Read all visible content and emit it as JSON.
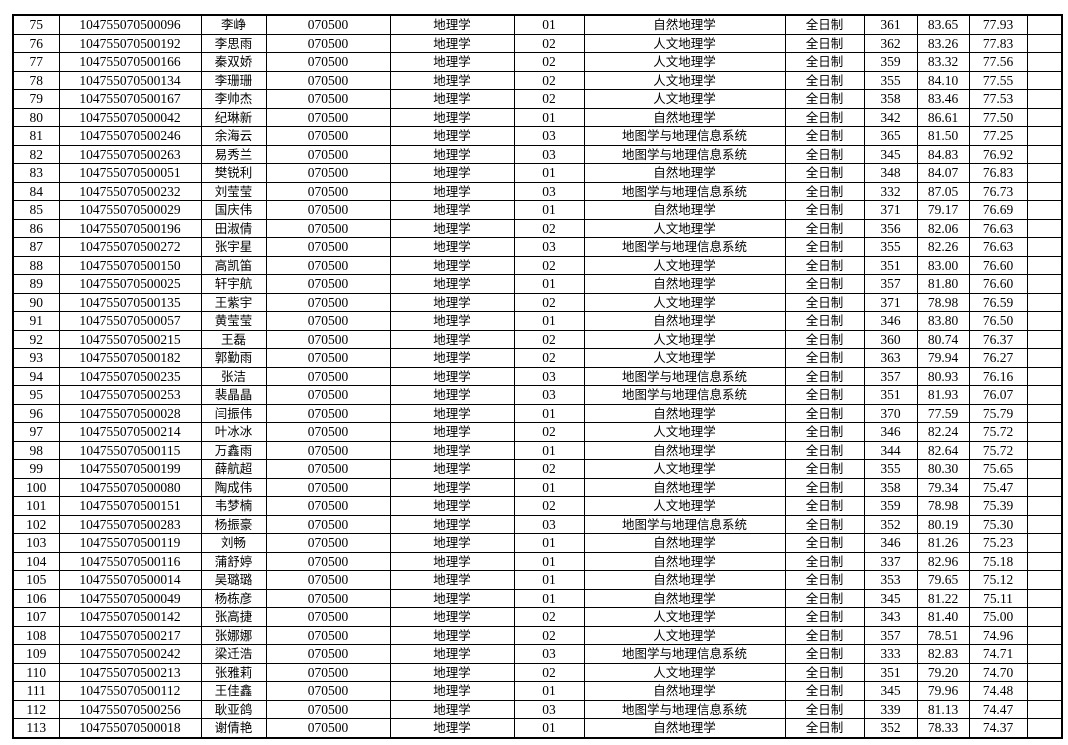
{
  "table": {
    "rows": [
      [
        "75",
        "104755070500096",
        "李峥",
        "070500",
        "地理学",
        "01",
        "自然地理学",
        "全日制",
        "361",
        "83.65",
        "77.93",
        ""
      ],
      [
        "76",
        "104755070500192",
        "李思雨",
        "070500",
        "地理学",
        "02",
        "人文地理学",
        "全日制",
        "362",
        "83.26",
        "77.83",
        ""
      ],
      [
        "77",
        "104755070500166",
        "秦双娇",
        "070500",
        "地理学",
        "02",
        "人文地理学",
        "全日制",
        "359",
        "83.32",
        "77.56",
        ""
      ],
      [
        "78",
        "104755070500134",
        "李珊珊",
        "070500",
        "地理学",
        "02",
        "人文地理学",
        "全日制",
        "355",
        "84.10",
        "77.55",
        ""
      ],
      [
        "79",
        "104755070500167",
        "李帅杰",
        "070500",
        "地理学",
        "02",
        "人文地理学",
        "全日制",
        "358",
        "83.46",
        "77.53",
        ""
      ],
      [
        "80",
        "104755070500042",
        "纪琳新",
        "070500",
        "地理学",
        "01",
        "自然地理学",
        "全日制",
        "342",
        "86.61",
        "77.50",
        ""
      ],
      [
        "81",
        "104755070500246",
        "余海云",
        "070500",
        "地理学",
        "03",
        "地图学与地理信息系统",
        "全日制",
        "365",
        "81.50",
        "77.25",
        ""
      ],
      [
        "82",
        "104755070500263",
        "易秀兰",
        "070500",
        "地理学",
        "03",
        "地图学与地理信息系统",
        "全日制",
        "345",
        "84.83",
        "76.92",
        ""
      ],
      [
        "83",
        "104755070500051",
        "樊锐利",
        "070500",
        "地理学",
        "01",
        "自然地理学",
        "全日制",
        "348",
        "84.07",
        "76.83",
        ""
      ],
      [
        "84",
        "104755070500232",
        "刘莹莹",
        "070500",
        "地理学",
        "03",
        "地图学与地理信息系统",
        "全日制",
        "332",
        "87.05",
        "76.73",
        ""
      ],
      [
        "85",
        "104755070500029",
        "国庆伟",
        "070500",
        "地理学",
        "01",
        "自然地理学",
        "全日制",
        "371",
        "79.17",
        "76.69",
        ""
      ],
      [
        "86",
        "104755070500196",
        "田淑倩",
        "070500",
        "地理学",
        "02",
        "人文地理学",
        "全日制",
        "356",
        "82.06",
        "76.63",
        ""
      ],
      [
        "87",
        "104755070500272",
        "张宇星",
        "070500",
        "地理学",
        "03",
        "地图学与地理信息系统",
        "全日制",
        "355",
        "82.26",
        "76.63",
        ""
      ],
      [
        "88",
        "104755070500150",
        "高凯笛",
        "070500",
        "地理学",
        "02",
        "人文地理学",
        "全日制",
        "351",
        "83.00",
        "76.60",
        ""
      ],
      [
        "89",
        "104755070500025",
        "轩宇航",
        "070500",
        "地理学",
        "01",
        "自然地理学",
        "全日制",
        "357",
        "81.80",
        "76.60",
        ""
      ],
      [
        "90",
        "104755070500135",
        "王紫宇",
        "070500",
        "地理学",
        "02",
        "人文地理学",
        "全日制",
        "371",
        "78.98",
        "76.59",
        ""
      ],
      [
        "91",
        "104755070500057",
        "黄莹莹",
        "070500",
        "地理学",
        "01",
        "自然地理学",
        "全日制",
        "346",
        "83.80",
        "76.50",
        ""
      ],
      [
        "92",
        "104755070500215",
        "王磊",
        "070500",
        "地理学",
        "02",
        "人文地理学",
        "全日制",
        "360",
        "80.74",
        "76.37",
        ""
      ],
      [
        "93",
        "104755070500182",
        "郭勤雨",
        "070500",
        "地理学",
        "02",
        "人文地理学",
        "全日制",
        "363",
        "79.94",
        "76.27",
        ""
      ],
      [
        "94",
        "104755070500235",
        "张洁",
        "070500",
        "地理学",
        "03",
        "地图学与地理信息系统",
        "全日制",
        "357",
        "80.93",
        "76.16",
        ""
      ],
      [
        "95",
        "104755070500253",
        "裴晶晶",
        "070500",
        "地理学",
        "03",
        "地图学与地理信息系统",
        "全日制",
        "351",
        "81.93",
        "76.07",
        ""
      ],
      [
        "96",
        "104755070500028",
        "闫振伟",
        "070500",
        "地理学",
        "01",
        "自然地理学",
        "全日制",
        "370",
        "77.59",
        "75.79",
        ""
      ],
      [
        "97",
        "104755070500214",
        "叶冰冰",
        "070500",
        "地理学",
        "02",
        "人文地理学",
        "全日制",
        "346",
        "82.24",
        "75.72",
        ""
      ],
      [
        "98",
        "104755070500115",
        "万鑫雨",
        "070500",
        "地理学",
        "01",
        "自然地理学",
        "全日制",
        "344",
        "82.64",
        "75.72",
        ""
      ],
      [
        "99",
        "104755070500199",
        "薛航超",
        "070500",
        "地理学",
        "02",
        "人文地理学",
        "全日制",
        "355",
        "80.30",
        "75.65",
        ""
      ],
      [
        "100",
        "104755070500080",
        "陶成伟",
        "070500",
        "地理学",
        "01",
        "自然地理学",
        "全日制",
        "358",
        "79.34",
        "75.47",
        ""
      ],
      [
        "101",
        "104755070500151",
        "韦梦楠",
        "070500",
        "地理学",
        "02",
        "人文地理学",
        "全日制",
        "359",
        "78.98",
        "75.39",
        ""
      ],
      [
        "102",
        "104755070500283",
        "杨振豪",
        "070500",
        "地理学",
        "03",
        "地图学与地理信息系统",
        "全日制",
        "352",
        "80.19",
        "75.30",
        ""
      ],
      [
        "103",
        "104755070500119",
        "刘畅",
        "070500",
        "地理学",
        "01",
        "自然地理学",
        "全日制",
        "346",
        "81.26",
        "75.23",
        ""
      ],
      [
        "104",
        "104755070500116",
        "蒲舒婷",
        "070500",
        "地理学",
        "01",
        "自然地理学",
        "全日制",
        "337",
        "82.96",
        "75.18",
        ""
      ],
      [
        "105",
        "104755070500014",
        "吴璐璐",
        "070500",
        "地理学",
        "01",
        "自然地理学",
        "全日制",
        "353",
        "79.65",
        "75.12",
        ""
      ],
      [
        "106",
        "104755070500049",
        "杨栋彦",
        "070500",
        "地理学",
        "01",
        "自然地理学",
        "全日制",
        "345",
        "81.22",
        "75.11",
        ""
      ],
      [
        "107",
        "104755070500142",
        "张高捷",
        "070500",
        "地理学",
        "02",
        "人文地理学",
        "全日制",
        "343",
        "81.40",
        "75.00",
        ""
      ],
      [
        "108",
        "104755070500217",
        "张娜娜",
        "070500",
        "地理学",
        "02",
        "人文地理学",
        "全日制",
        "357",
        "78.51",
        "74.96",
        ""
      ],
      [
        "109",
        "104755070500242",
        "梁迁浩",
        "070500",
        "地理学",
        "03",
        "地图学与地理信息系统",
        "全日制",
        "333",
        "82.83",
        "74.71",
        ""
      ],
      [
        "110",
        "104755070500213",
        "张雅莉",
        "070500",
        "地理学",
        "02",
        "人文地理学",
        "全日制",
        "351",
        "79.20",
        "74.70",
        ""
      ],
      [
        "111",
        "104755070500112",
        "王佳鑫",
        "070500",
        "地理学",
        "01",
        "自然地理学",
        "全日制",
        "345",
        "79.96",
        "74.48",
        ""
      ],
      [
        "112",
        "104755070500256",
        "耿亚鸽",
        "070500",
        "地理学",
        "03",
        "地图学与地理信息系统",
        "全日制",
        "339",
        "81.13",
        "74.47",
        ""
      ],
      [
        "113",
        "104755070500018",
        "谢倩艳",
        "070500",
        "地理学",
        "01",
        "自然地理学",
        "全日制",
        "352",
        "78.33",
        "74.37",
        ""
      ]
    ]
  }
}
